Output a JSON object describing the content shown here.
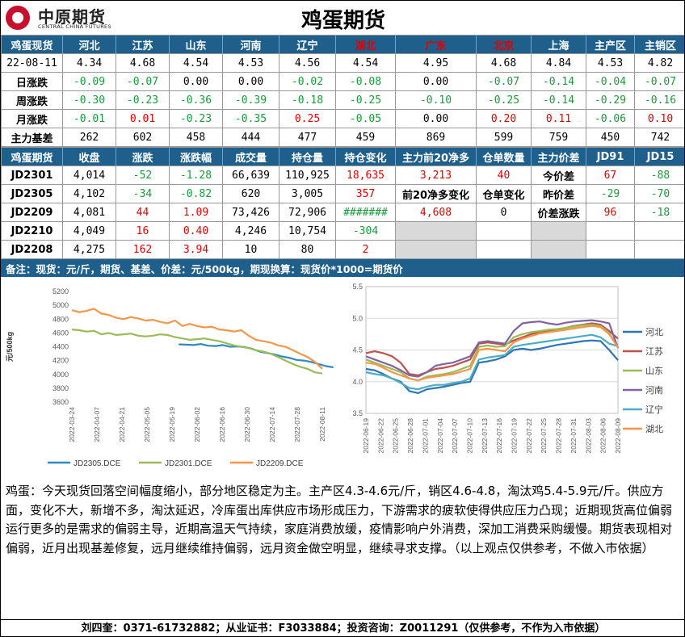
{
  "header": {
    "logo_cn": "中原期货",
    "logo_en": "CENTRAL CHINA FUTURES",
    "title": "鸡蛋期货"
  },
  "spot": {
    "headers": [
      "鸡蛋现货",
      "河北",
      "江苏",
      "山东",
      "河南",
      "辽宁",
      "湖北",
      "广东",
      "北京",
      "上海",
      "主产区",
      "主销区"
    ],
    "red_headers": [
      6,
      7,
      8
    ],
    "rows": [
      [
        "22-08-11",
        "4.34",
        "4.68",
        "4.54",
        "4.53",
        "4.56",
        "4.54",
        "4.95",
        "4.68",
        "4.84",
        "4.53",
        "4.82"
      ],
      [
        "日涨跌",
        "-0.09",
        "-0.07",
        "0.00",
        "0.00",
        "-0.02",
        "-0.08",
        "0.00",
        "-0.07",
        "-0.14",
        "-0.04",
        "-0.07"
      ],
      [
        "周涨跌",
        "-0.30",
        "-0.23",
        "-0.36",
        "-0.39",
        "-0.18",
        "-0.25",
        "-0.10",
        "-0.25",
        "-0.14",
        "-0.29",
        "-0.16"
      ],
      [
        "月涨跌",
        "-0.01",
        "0.01",
        "-0.23",
        "-0.35",
        "0.25",
        "-0.05",
        "0.00",
        "0.20",
        "0.11",
        "-0.06",
        "0.10"
      ],
      [
        "主力基差",
        "262",
        "602",
        "458",
        "444",
        "477",
        "459",
        "869",
        "599",
        "759",
        "450",
        "742"
      ]
    ]
  },
  "futures": {
    "headers": [
      "鸡蛋期货",
      "收盘",
      "涨跌",
      "涨跌幅",
      "成交量",
      "持仓量",
      "持仓变化",
      "主力前20净多",
      "仓单数量",
      "主力价差",
      "JD91",
      "JD15"
    ],
    "rows": [
      {
        "c": [
          "JD2301",
          "4,014",
          "-52",
          "-1.28",
          "66,639",
          "110,925",
          "18,635"
        ],
        "top20": "3,213",
        "wh": "40",
        "spread_label": "今价差",
        "jd91": "67",
        "jd15": "-88"
      },
      {
        "c": [
          "JD2305",
          "4,102",
          "-34",
          "-0.82",
          "620",
          "3,005",
          "357"
        ],
        "top20": "前20净多变化",
        "wh": "仓单变化",
        "spread_label": "昨价差",
        "jd91": "-29",
        "jd15": "-70"
      },
      {
        "c": [
          "JD2209",
          "4,081",
          "44",
          "1.09",
          "73,426",
          "72,906",
          "#######"
        ],
        "top20": "4,608",
        "wh": "0",
        "spread_label": "价差涨跌",
        "jd91": "96",
        "jd15": "-18"
      },
      {
        "c": [
          "JD2210",
          "4,049",
          "16",
          "0.40",
          "4,246",
          "10,754",
          "-304"
        ]
      },
      {
        "c": [
          "JD2208",
          "4,275",
          "162",
          "3.94",
          "10",
          "80",
          "2"
        ]
      }
    ]
  },
  "note": "备注：现货：元/斤，期货、基差、价差：元/500kg，期现换算：现货价*1000=期货价",
  "colors": {
    "header_bg": "#1f5f8b",
    "up": "#e00000",
    "down": "#1a9a3a"
  },
  "chart_data": [
    {
      "type": "line",
      "ylabel": "元/500kg",
      "ylim": [
        3600,
        5200
      ],
      "yticks": [
        3600,
        3800,
        4000,
        4200,
        4400,
        4600,
        4800,
        5000,
        5200
      ],
      "xticks": [
        "2022-03-24",
        "2022-04-07",
        "2022-04-21",
        "2022-05-05",
        "2022-05-19",
        "2022-06-02",
        "2022-06-16",
        "2022-06-30",
        "2022-07-14",
        "2022-07-28",
        "2022-08-11"
      ],
      "series": [
        {
          "name": "JD2305.DCE",
          "color": "#2e8bc0",
          "x_start": 14.5,
          "values": [
            4435,
            4430,
            4425,
            4440,
            4415,
            4410,
            4425,
            4400,
            4405,
            4395,
            4370,
            4330,
            4310,
            4290,
            4260,
            4240,
            4210,
            4200,
            4180,
            4150,
            4120,
            4102
          ]
        },
        {
          "name": "JD2301.DCE",
          "color": "#9bbb59",
          "x_start": 0,
          "values": [
            4650,
            4640,
            4620,
            4630,
            4580,
            4600,
            4570,
            4580,
            4590,
            4560,
            4550,
            4560,
            4580,
            4570,
            4540,
            4520,
            4500,
            4510,
            4520,
            4500,
            4480,
            4450,
            4420,
            4400,
            4380,
            4350,
            4330,
            4300,
            4250,
            4200,
            4150,
            4110,
            4080,
            4030,
            4014
          ]
        },
        {
          "name": "JD2209.DCE",
          "color": "#f79646",
          "x_start": 0,
          "values": [
            4930,
            4900,
            4920,
            4950,
            4880,
            4860,
            4820,
            4800,
            4830,
            4810,
            4780,
            4790,
            4760,
            4740,
            4780,
            4700,
            4730,
            4700,
            4680,
            4690,
            4650,
            4640,
            4620,
            4640,
            4560,
            4500,
            4480,
            4460,
            4420,
            4400,
            4350,
            4300,
            4250,
            4180,
            4081
          ]
        }
      ]
    },
    {
      "type": "line",
      "ylim": [
        3.5,
        5.5
      ],
      "yticks": [
        3.5,
        4.0,
        4.5,
        5.0,
        5.5
      ],
      "xticks": [
        "2022-06-19",
        "2022-06-22",
        "2022-06-25",
        "2022-06-28",
        "2022-07-01",
        "2022-07-04",
        "2022-07-07",
        "2022-07-10",
        "2022-07-13",
        "2022-07-16",
        "2022-07-19",
        "2022-07-22",
        "2022-07-25",
        "2022-07-28",
        "2022-07-31",
        "2022-08-03",
        "2022-08-06",
        "2022-08-09"
      ],
      "series": [
        {
          "name": "河北",
          "color": "#2e75b6",
          "values": [
            4.2,
            4.18,
            4.12,
            4.05,
            4.0,
            3.85,
            3.82,
            3.88,
            3.9,
            3.92,
            3.95,
            3.98,
            4.0,
            4.3,
            4.32,
            4.35,
            4.4,
            4.5,
            4.52,
            4.5,
            4.52,
            4.55,
            4.58,
            4.6,
            4.62,
            4.64,
            4.65,
            4.64,
            4.5,
            4.34
          ]
        },
        {
          "name": "江苏",
          "color": "#c0504d",
          "values": [
            4.45,
            4.48,
            4.45,
            4.4,
            4.3,
            4.12,
            4.1,
            4.15,
            4.2,
            4.22,
            4.25,
            4.3,
            4.35,
            4.6,
            4.62,
            4.6,
            4.58,
            4.65,
            4.7,
            4.75,
            4.78,
            4.8,
            4.82,
            4.85,
            4.88,
            4.9,
            4.92,
            4.9,
            4.8,
            4.68
          ]
        },
        {
          "name": "山东",
          "color": "#9bbb59",
          "values": [
            4.35,
            4.3,
            4.25,
            4.2,
            4.15,
            4.05,
            4.02,
            4.08,
            4.1,
            4.12,
            4.15,
            4.2,
            4.25,
            4.55,
            4.57,
            4.55,
            4.56,
            4.7,
            4.75,
            4.78,
            4.8,
            4.82,
            4.83,
            4.85,
            4.87,
            4.89,
            4.9,
            4.88,
            4.77,
            4.54
          ]
        },
        {
          "name": "河南",
          "color": "#8064a2",
          "values": [
            4.4,
            4.35,
            4.3,
            4.25,
            4.18,
            4.1,
            4.08,
            4.15,
            4.25,
            4.28,
            4.3,
            4.35,
            4.4,
            4.62,
            4.64,
            4.62,
            4.6,
            4.8,
            4.92,
            4.94,
            4.95,
            4.92,
            4.9,
            4.93,
            4.95,
            4.96,
            4.97,
            4.95,
            4.92,
            4.53
          ]
        },
        {
          "name": "辽宁",
          "color": "#4bacc6",
          "values": [
            4.15,
            4.12,
            4.1,
            4.05,
            3.98,
            3.9,
            3.88,
            3.92,
            3.95,
            3.95,
            3.98,
            4.0,
            4.05,
            4.35,
            4.38,
            4.4,
            4.42,
            4.55,
            4.58,
            4.6,
            4.62,
            4.64,
            4.66,
            4.68,
            4.7,
            4.72,
            4.74,
            4.7,
            4.6,
            4.56
          ]
        },
        {
          "name": "湖北",
          "color": "#f79646",
          "values": [
            4.3,
            4.28,
            4.22,
            4.15,
            4.1,
            4.05,
            4.02,
            4.06,
            4.08,
            4.1,
            4.12,
            4.16,
            4.2,
            4.5,
            4.52,
            4.5,
            4.48,
            4.62,
            4.68,
            4.72,
            4.76,
            4.78,
            4.8,
            4.82,
            4.84,
            4.86,
            4.88,
            4.86,
            4.75,
            4.54
          ]
        }
      ]
    }
  ],
  "analysis": "鸡蛋：今天现货回落空间幅度缩小，部分地区稳定为主。主产区4.3-4.6元/斤，销区4.6-4.8，淘汰鸡5.4-5.9元/斤。供应方面，变化不大，新增不多，淘汰延迟，冷库蛋出库供应市场形成压力，下游需求的疲软使得供应压力凸现；近期现货高位偏弱运行更多的是需求的偏弱主导，近期高温天气持续，家庭消费放缓，疫情影响户外消费，深加工消费采购缓慢。期货表现相对偏弱，近月出现基差修复，远月继续维持偏弱，远月资金做空明显，继续寻求支撑。（以上观点仅供参考，不做入市依据）",
  "footer": "刘四奎：0371-61732882；从业证书：F3033884；投资咨询：Z0011291（仅供参考，不作为入市依据）"
}
